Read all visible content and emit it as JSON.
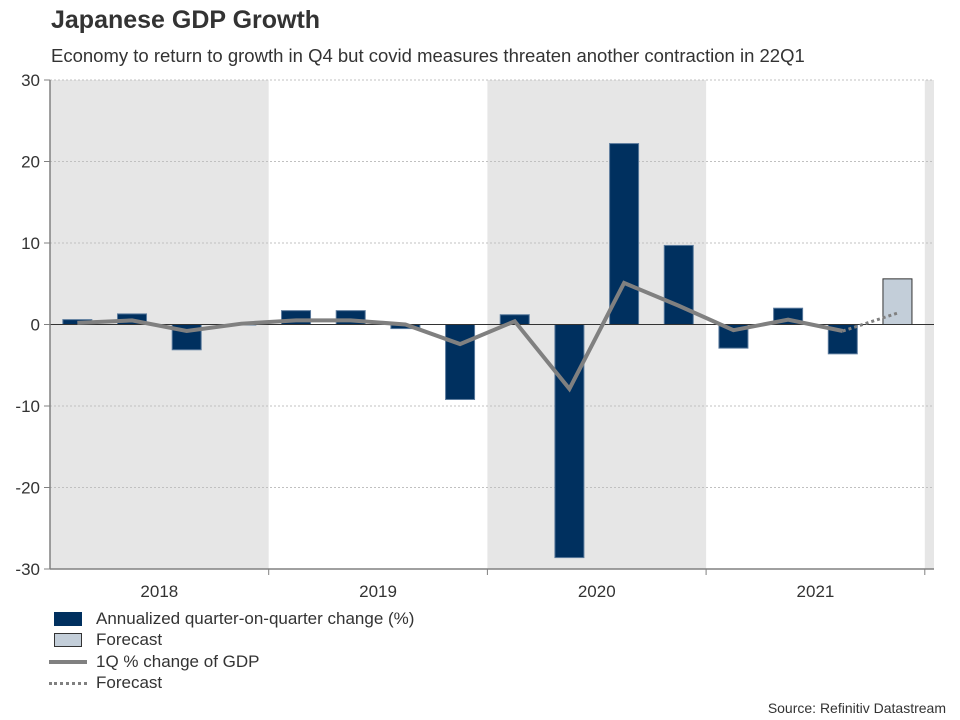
{
  "chart_data": {
    "type": "bar",
    "title": "Japanese GDP Growth",
    "subtitle": "Economy to return to growth in Q4 but covid measures threaten another contraction in 22Q1",
    "xlabel": "",
    "ylabel": "",
    "ylim": [
      -30,
      30
    ],
    "yticks": [
      30,
      20,
      10,
      0,
      -10,
      -20,
      -30
    ],
    "ytick_labels": [
      "30",
      "20",
      "10",
      "0",
      "-10",
      "-20",
      "-30"
    ],
    "grid": true,
    "year_labels": [
      "2018",
      "2019",
      "2020",
      "2021"
    ],
    "categories": [
      "2018Q1",
      "2018Q2",
      "2018Q3",
      "2018Q4",
      "2019Q1",
      "2019Q2",
      "2019Q3",
      "2019Q4",
      "2020Q1",
      "2020Q2",
      "2020Q3",
      "2020Q4",
      "2021Q1",
      "2021Q2",
      "2021Q3",
      "2021Q4"
    ],
    "shaded_years": [
      "2018",
      "2020",
      "2022"
    ],
    "series": [
      {
        "name": "Annualized quarter-on-quarter change (%)",
        "type": "bar",
        "color": "#00305f",
        "values": [
          0.6,
          1.3,
          -3.1,
          0.0,
          1.7,
          1.7,
          -0.5,
          -9.2,
          1.2,
          -28.6,
          22.2,
          9.7,
          -2.9,
          2.0,
          -3.6,
          null
        ]
      },
      {
        "name": "Forecast",
        "type": "bar",
        "color": "#c3ced9",
        "values": [
          null,
          null,
          null,
          null,
          null,
          null,
          null,
          null,
          null,
          null,
          null,
          null,
          null,
          null,
          null,
          5.6
        ]
      },
      {
        "name": "1Q % change of GDP",
        "type": "line",
        "color": "#808080",
        "values": [
          0.2,
          0.5,
          -0.8,
          0.1,
          0.5,
          0.5,
          0.0,
          -2.4,
          0.4,
          -7.9,
          5.1,
          2.3,
          -0.7,
          0.6,
          -0.8,
          null
        ]
      },
      {
        "name": "Forecast",
        "type": "line-dotted",
        "color": "#808080",
        "values": [
          null,
          null,
          null,
          null,
          null,
          null,
          null,
          null,
          null,
          null,
          null,
          null,
          null,
          null,
          -0.8,
          1.4
        ]
      }
    ],
    "legend_position": "bottom-left",
    "source": "Source: Refinitiv Datastream"
  },
  "legend": {
    "items": [
      {
        "label": "Annualized quarter-on-quarter change (%)"
      },
      {
        "label": "Forecast"
      },
      {
        "label": "1Q % change of GDP"
      },
      {
        "label": "Forecast"
      }
    ]
  }
}
